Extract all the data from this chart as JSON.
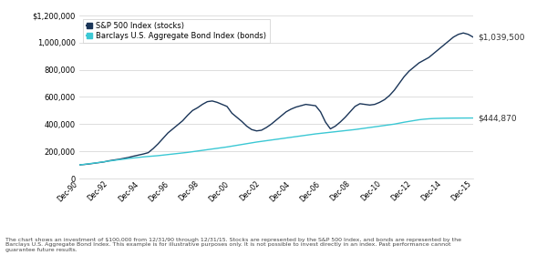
{
  "stocks_label": "S&P 500 Index (stocks)",
  "bonds_label": "Barclays U.S. Aggregate Bond Index (bonds)",
  "stocks_color": "#1a3558",
  "bonds_color": "#3bc8d4",
  "stocks_final_label": "$1,039,500",
  "bonds_final_label": "$444,870",
  "ylim": [
    0,
    1200000
  ],
  "yticks": [
    0,
    200000,
    400000,
    600000,
    800000,
    1000000,
    1200000
  ],
  "ytick_labels": [
    "0",
    "200,000",
    "400,000",
    "600,000",
    "800,000",
    "1,000,000",
    "$1,200,000"
  ],
  "x_labels": [
    "Dec-90",
    "Dec-92",
    "Dec-94",
    "Dec-96",
    "Dec-98",
    "Dec-00",
    "Dec-02",
    "Dec-04",
    "Dec-06",
    "Dec-08",
    "Dec-10",
    "Dec-12",
    "Dec-14",
    "Dec-15"
  ],
  "footnote": "The chart shows an investment of $100,000 from 12/31/90 through 12/31/15. Stocks are represented by the S&P 500 Index, and bonds are represented by the\nBarclays U.S. Aggregate Bond Index. This example is for illustrative purposes only. It is not possible to invest directly in an index. Past performance cannot\nguarantee future results.",
  "background_color": "#ffffff",
  "grid_color": "#d0d0d0",
  "stocks_values": [
    100000,
    103000,
    107000,
    112000,
    117000,
    122000,
    130000,
    136000,
    141000,
    148000,
    155000,
    164000,
    172000,
    180000,
    190000,
    220000,
    255000,
    295000,
    335000,
    365000,
    395000,
    425000,
    465000,
    500000,
    520000,
    545000,
    565000,
    570000,
    560000,
    545000,
    530000,
    480000,
    450000,
    420000,
    385000,
    360000,
    350000,
    355000,
    375000,
    400000,
    430000,
    460000,
    490000,
    510000,
    525000,
    535000,
    545000,
    540000,
    535000,
    490000,
    415000,
    365000,
    385000,
    415000,
    450000,
    490000,
    530000,
    550000,
    545000,
    540000,
    545000,
    560000,
    580000,
    610000,
    650000,
    700000,
    750000,
    790000,
    820000,
    850000,
    870000,
    890000,
    920000,
    950000,
    980000,
    1010000,
    1040000,
    1060000,
    1070000,
    1060000,
    1039500
  ],
  "bonds_values": [
    100000,
    104000,
    109000,
    113000,
    118000,
    123000,
    128000,
    133000,
    138000,
    142000,
    147000,
    151000,
    155000,
    159000,
    162000,
    165000,
    168000,
    172000,
    176000,
    180000,
    184000,
    188000,
    192000,
    197000,
    202000,
    207000,
    212000,
    217000,
    222000,
    227000,
    232000,
    238000,
    244000,
    250000,
    256000,
    262000,
    268000,
    273000,
    278000,
    283000,
    288000,
    293000,
    298000,
    303000,
    308000,
    313000,
    318000,
    323000,
    328000,
    332000,
    336000,
    340000,
    344000,
    348000,
    352000,
    356000,
    360000,
    365000,
    370000,
    375000,
    380000,
    385000,
    390000,
    395000,
    400000,
    407000,
    414000,
    420000,
    426000,
    432000,
    436000,
    439000,
    441000,
    442000,
    443000,
    443500,
    444000,
    444300,
    444500,
    444700,
    444870
  ]
}
